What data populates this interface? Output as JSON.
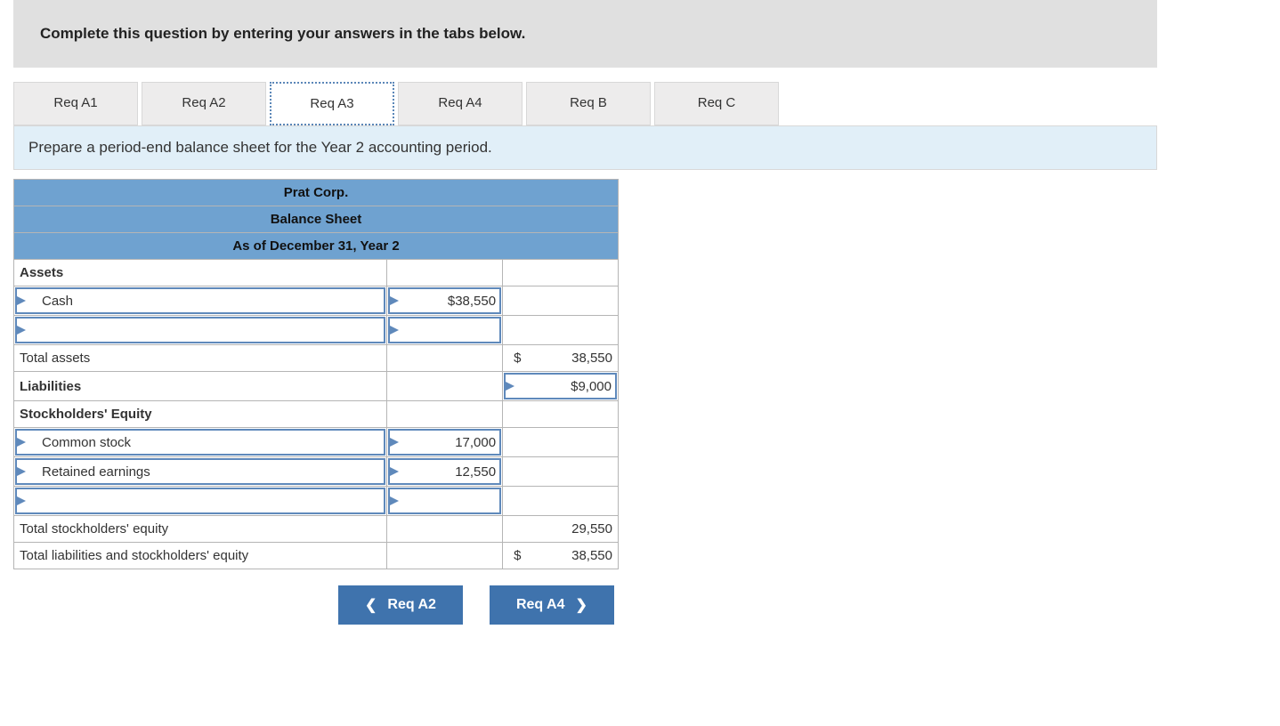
{
  "colors": {
    "instruction_bg": "#e0e0e0",
    "tab_bg": "#edecec",
    "tab_active_border": "#5b87b8",
    "description_bg": "#e1eff8",
    "table_header_bg": "#6fa2d0",
    "input_border": "#5f89bb",
    "nav_btn_bg": "#3f73ad",
    "cell_border": "#b5b5b5"
  },
  "instruction": "Complete this question by entering your answers in the tabs below.",
  "tabs": [
    {
      "label": "Req A1",
      "active": false
    },
    {
      "label": "Req A2",
      "active": false
    },
    {
      "label": "Req A3",
      "active": true
    },
    {
      "label": "Req A4",
      "active": false
    },
    {
      "label": "Req B",
      "active": false
    },
    {
      "label": "Req C",
      "active": false
    }
  ],
  "description": "Prepare a period-end balance sheet for the Year 2 accounting period.",
  "balance_sheet": {
    "company": "Prat Corp.",
    "title": "Balance Sheet",
    "as_of": "As of December 31, Year 2",
    "sections": {
      "assets_label": "Assets",
      "cash_label": "Cash",
      "cash_value": "38,550",
      "blank_row_label": "",
      "blank_row_value": "",
      "total_assets_label": "Total assets",
      "total_assets_value": "38,550",
      "liabilities_label": "Liabilities",
      "liabilities_value": "9,000",
      "equity_label": "Stockholders' Equity",
      "common_stock_label": "Common stock",
      "common_stock_value": "17,000",
      "retained_earnings_label": "Retained earnings",
      "retained_earnings_value": "12,550",
      "blank_eq_label": "",
      "blank_eq_value": "",
      "total_equity_label": "Total stockholders' equity",
      "total_equity_value": "29,550",
      "total_liab_eq_label": "Total liabilities and stockholders' equity",
      "total_liab_eq_value": "38,550"
    },
    "currency_symbol": "$"
  },
  "nav": {
    "prev_label": "Req A2",
    "next_label": "Req A4"
  }
}
